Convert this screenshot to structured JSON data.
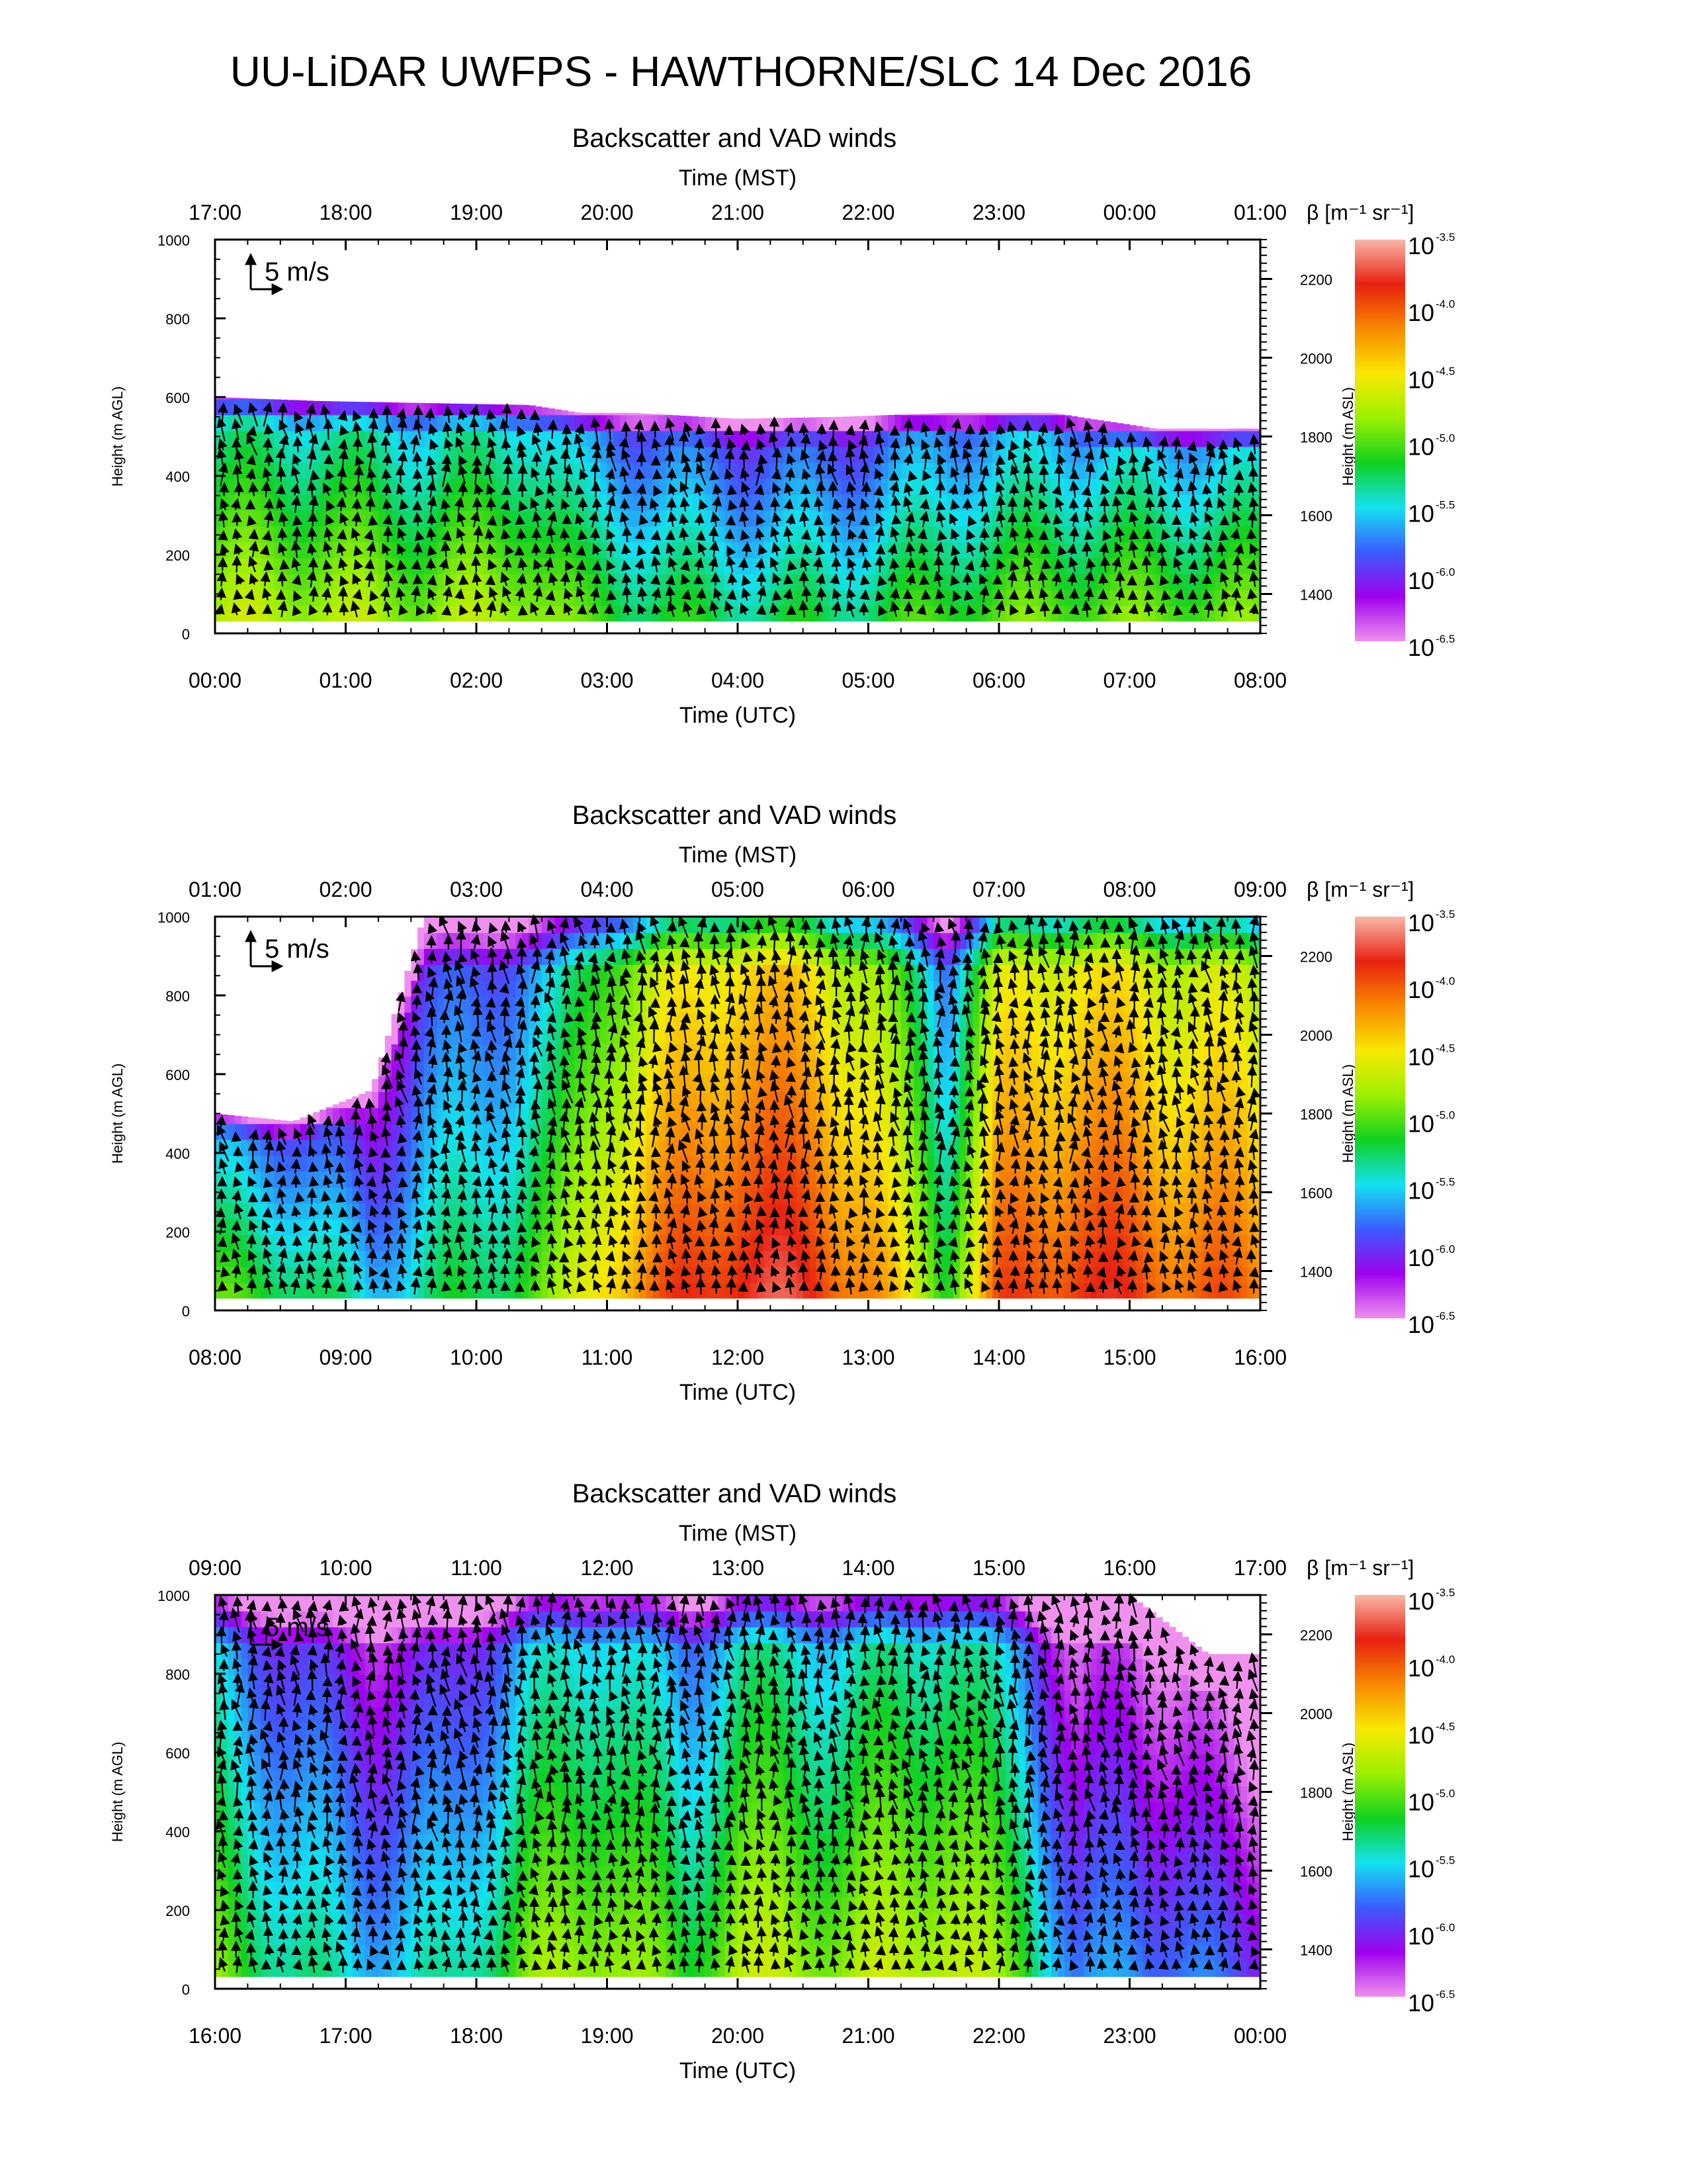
{
  "figure": {
    "title": "UU-LiDAR UWFPS - HAWTHORNE/SLC 14 Dec 2016"
  },
  "shared": {
    "panel_title": "Backscatter and VAD winds",
    "top_axis_label": "Time (MST)",
    "bottom_axis_label": "Time (UTC)",
    "left_axis_label": "Height (m AGL)",
    "right_axis_label": "Height (m ASL)",
    "scale_arrow_label": "5 m/s",
    "colorbar_label": "β [m⁻¹ sr⁻¹]",
    "colorbar_base": "10",
    "colorbar_exponents": [
      "-3.5",
      "-4.0",
      "-4.5",
      "-5.0",
      "-5.5",
      "-6.0",
      "-6.5"
    ],
    "left_ticks": [
      "1000",
      "800",
      "600",
      "400",
      "200",
      "0"
    ],
    "right_ticks": [
      "2200",
      "2000",
      "1800",
      "1600",
      "1400"
    ]
  },
  "colors": {
    "colormap": [
      "#ef90ef",
      "#9f00ef",
      "#3b5cff",
      "#12e2f0",
      "#10d020",
      "#9cf000",
      "#f8e800",
      "#f88800",
      "#e82010",
      "#f8b8a8"
    ],
    "arrow": "#000000"
  },
  "chart_data": [
    {
      "type": "heatmap",
      "title": "Backscatter and VAD winds",
      "xlabel": "Time (UTC)",
      "x2label": "Time (MST)",
      "ylabel": "Height (m AGL)",
      "y2label": "Height (m ASL)",
      "top_ticks": [
        "17:00",
        "18:00",
        "19:00",
        "20:00",
        "21:00",
        "22:00",
        "23:00",
        "00:00",
        "01:00"
      ],
      "bottom_ticks": [
        "00:00",
        "01:00",
        "02:00",
        "03:00",
        "04:00",
        "05:00",
        "06:00",
        "07:00",
        "08:00"
      ],
      "ylim": [
        0,
        1000
      ],
      "y2lim": [
        1300,
        2300
      ],
      "color_scale": "log10 beta, -6.5 to -3.5",
      "x_knots": [
        0,
        0.8,
        1.6,
        2.4,
        2.8,
        3.2,
        4,
        4.8,
        5.6,
        6.4,
        7.2,
        8
      ],
      "top_height_m": [
        600,
        590,
        585,
        580,
        560,
        560,
        545,
        550,
        560,
        560,
        520,
        520
      ],
      "log_beta_mid": [
        -5.0,
        -5.0,
        -5.1,
        -5.0,
        -5.3,
        -5.4,
        -5.5,
        -5.5,
        -5.3,
        -5.2,
        -5.2,
        -5.2
      ]
    },
    {
      "type": "heatmap",
      "title": "Backscatter and VAD winds",
      "xlabel": "Time (UTC)",
      "x2label": "Time (MST)",
      "ylabel": "Height (m AGL)",
      "y2label": "Height (m ASL)",
      "top_ticks": [
        "01:00",
        "02:00",
        "03:00",
        "04:00",
        "05:00",
        "06:00",
        "07:00",
        "08:00",
        "09:00"
      ],
      "bottom_ticks": [
        "08:00",
        "09:00",
        "10:00",
        "11:00",
        "12:00",
        "13:00",
        "14:00",
        "15:00",
        "16:00"
      ],
      "ylim": [
        0,
        1000
      ],
      "y2lim": [
        1300,
        2300
      ],
      "color_scale": "log10 beta, -6.5 to -3.5",
      "x_knots": [
        8,
        8.6,
        9.2,
        9.6,
        10,
        10.6,
        11,
        11.6,
        12,
        12.6,
        13,
        13.6,
        14,
        14.6,
        15,
        15.6,
        16
      ],
      "top_height_m": [
        500,
        480,
        560,
        1000,
        1000,
        1000,
        1000,
        1000,
        1000,
        1000,
        1000,
        1000,
        1000,
        1000,
        1000,
        1000,
        1000
      ],
      "log_beta_mid": [
        -5.3,
        -5.4,
        -5.8,
        -5.6,
        -5.5,
        -5.2,
        -4.6,
        -4.2,
        -4.0,
        -4.1,
        -4.4,
        -5.3,
        -4.3,
        -4.1,
        -4.2,
        -4.3,
        -4.4
      ]
    },
    {
      "type": "heatmap",
      "title": "Backscatter and VAD winds",
      "xlabel": "Time (UTC)",
      "x2label": "Time (MST)",
      "ylabel": "Height (m AGL)",
      "y2label": "Height (m ASL)",
      "top_ticks": [
        "09:00",
        "10:00",
        "11:00",
        "12:00",
        "13:00",
        "14:00",
        "15:00",
        "16:00",
        "17:00"
      ],
      "bottom_ticks": [
        "16:00",
        "17:00",
        "18:00",
        "19:00",
        "20:00",
        "21:00",
        "22:00",
        "23:00",
        "00:00"
      ],
      "ylim": [
        0,
        1000
      ],
      "y2lim": [
        1300,
        2300
      ],
      "color_scale": "log10 beta, -6.5 to -3.5",
      "x_knots": [
        16,
        16.6,
        17.2,
        17.8,
        18.4,
        19,
        19.6,
        20,
        20.8,
        21.2,
        21.6,
        22.2,
        22.6,
        23,
        23.6,
        24
      ],
      "top_height_m": [
        1000,
        1000,
        1000,
        1000,
        1000,
        1000,
        1000,
        1000,
        1000,
        1000,
        1000,
        1000,
        1000,
        1000,
        850,
        850
      ],
      "log_beta_mid": [
        -5.2,
        -5.6,
        -5.8,
        -5.7,
        -5.2,
        -5.0,
        -5.4,
        -5.0,
        -5.1,
        -5.0,
        -4.9,
        -5.3,
        -6.1,
        -5.9,
        -6.1,
        -6.2
      ]
    }
  ]
}
